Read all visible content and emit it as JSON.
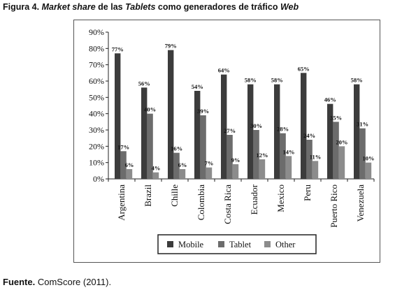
{
  "caption": {
    "prefix": "Figura 4.",
    "part1": "Market share",
    "part2": " de las ",
    "part3": "Tablets",
    "part4": " como generadores de tráfico ",
    "part5": "Web"
  },
  "source": {
    "label": "Fuente.",
    "text": " ComScore (2011)."
  },
  "colors": {
    "Mobile": "#3c3c3c",
    "Tablet": "#6c6c6c",
    "Other": "#8c8c8c"
  },
  "chart_data": {
    "type": "bar",
    "categories": [
      "Argentina",
      "Brazil",
      "Chille",
      "Colombia",
      "Costa Rica",
      "Ecuador",
      "Mexico",
      "Peru",
      "Puerto Rico",
      "Venezuela"
    ],
    "series": [
      {
        "name": "Mobile",
        "values": [
          77,
          56,
          79,
          54,
          64,
          58,
          58,
          65,
          46,
          58
        ]
      },
      {
        "name": "Tablet",
        "values": [
          17,
          40,
          16,
          39,
          27,
          30,
          28,
          24,
          35,
          31
        ]
      },
      {
        "name": "Other",
        "values": [
          6,
          4,
          6,
          7,
          9,
          12,
          14,
          11,
          20,
          10
        ]
      }
    ],
    "yticks": [
      "0%",
      "10%",
      "20%",
      "30%",
      "40%",
      "50%",
      "60%",
      "70%",
      "80%",
      "90%"
    ],
    "ylim": [
      0,
      90
    ],
    "legend_position": "bottom",
    "grid": false
  }
}
